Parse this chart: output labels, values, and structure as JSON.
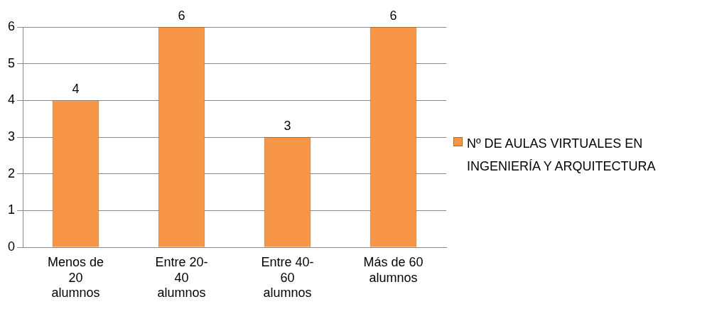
{
  "chart_data": {
    "type": "bar",
    "categories": [
      "Menos de 20 alumnos",
      "Entre 20-40 alumnos",
      "Entre 40-60 alumnos",
      "Más de 60 alumnos"
    ],
    "series": [
      {
        "name": "Nº DE AULAS VIRTUALES EN INGENIERÍA Y ARQUITECTURA",
        "color": "#f79646",
        "values": [
          4,
          6,
          3,
          6
        ]
      }
    ],
    "ylim": [
      0,
      6
    ],
    "yticks": [
      0,
      1,
      2,
      3,
      4,
      5,
      6
    ],
    "grid": "y",
    "legend": "right",
    "data_labels": true
  }
}
